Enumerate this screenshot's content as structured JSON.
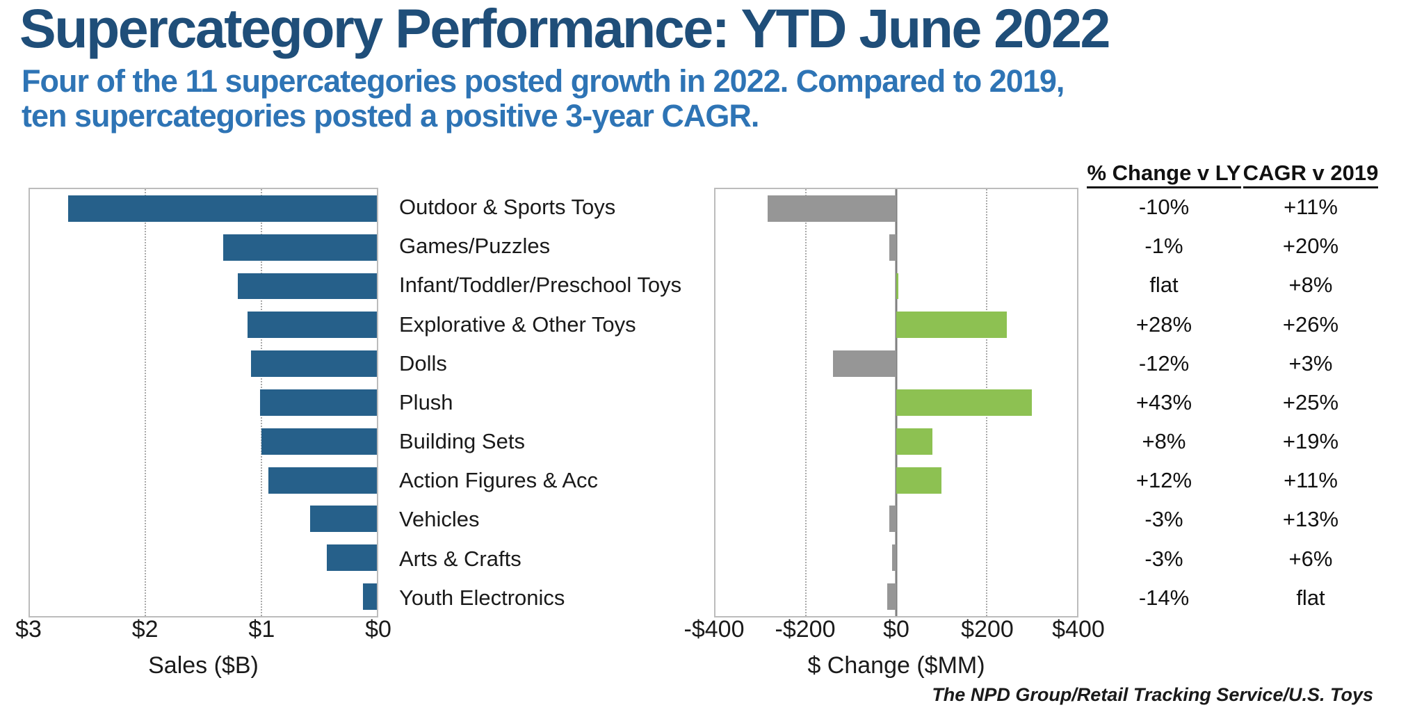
{
  "header": {
    "title": "Supercategory Performance: YTD June 2022",
    "subtitle_line1": "Four of the 11 supercategories posted growth in 2022. Compared to 2019,",
    "subtitle_line2": "ten supercategories posted a positive 3-year CAGR."
  },
  "source": "The NPD Group/Retail Tracking Service/U.S. Toys",
  "colors": {
    "title_text": "#1F4E79",
    "subtitle_text": "#2E74B5",
    "sales_bar": "#26608A",
    "positive_bar": "#8DC152",
    "negative_bar": "#969696"
  },
  "chart_data": [
    {
      "type": "bar",
      "orientation": "horizontal",
      "categories": [
        "Outdoor & Sports Toys",
        "Games/Puzzles",
        "Infant/Toddler/Preschool Toys",
        "Explorative & Other Toys",
        "Dolls",
        "Plush",
        "Building Sets",
        "Action Figures & Acc",
        "Vehicles",
        "Arts & Crafts",
        "Youth Electronics"
      ],
      "values": [
        2.67,
        1.33,
        1.2,
        1.12,
        1.09,
        1.01,
        1.0,
        0.94,
        0.58,
        0.43,
        0.12
      ],
      "unit": "$B",
      "xlabel": "Sales ($B)",
      "xlim": [
        3,
        0
      ],
      "axis_reversed": true,
      "x_ticks": [
        "$3",
        "$2",
        "$1",
        "$0"
      ],
      "grid": "dotted-vertical",
      "bar_color": "#26608A"
    },
    {
      "type": "bar",
      "orientation": "horizontal",
      "categories": [
        "Outdoor & Sports Toys",
        "Games/Puzzles",
        "Infant/Toddler/Preschool Toys",
        "Explorative & Other Toys",
        "Dolls",
        "Plush",
        "Building Sets",
        "Action Figures & Acc",
        "Vehicles",
        "Arts & Crafts",
        "Youth Electronics"
      ],
      "values": [
        -285,
        -15,
        4,
        245,
        -140,
        300,
        80,
        100,
        -15,
        -10,
        -20
      ],
      "unit": "$MM",
      "xlabel": "$ Change ($MM)",
      "xlim": [
        -400,
        400
      ],
      "x_ticks": [
        "-$400",
        "-$200",
        "$0",
        "$200",
        "$400"
      ],
      "grid": "dotted-vertical",
      "positive_color": "#8DC152",
      "negative_color": "#969696"
    },
    {
      "type": "table",
      "columns": [
        "% Change v LY",
        "CAGR v 2019"
      ],
      "rows": [
        [
          "-10%",
          "+11%"
        ],
        [
          "-1%",
          "+20%"
        ],
        [
          "flat",
          "+8%"
        ],
        [
          "+28%",
          "+26%"
        ],
        [
          "-12%",
          "+3%"
        ],
        [
          "+43%",
          "+25%"
        ],
        [
          "+8%",
          "+19%"
        ],
        [
          "+12%",
          "+11%"
        ],
        [
          "-3%",
          "+13%"
        ],
        [
          "-3%",
          "+6%"
        ],
        [
          "-14%",
          "flat"
        ]
      ]
    }
  ]
}
